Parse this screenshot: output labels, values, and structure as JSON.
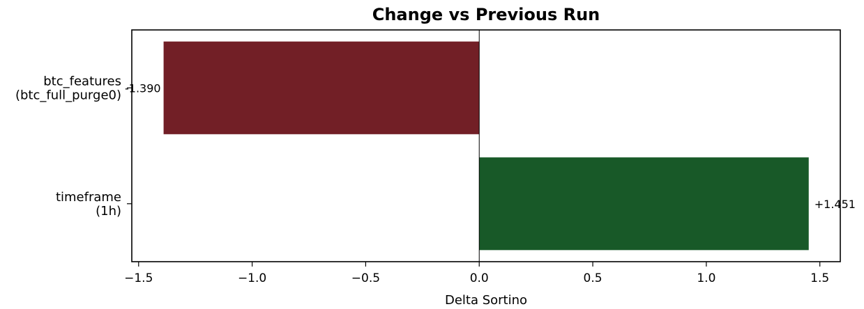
{
  "chart_data": {
    "type": "bar",
    "orientation": "horizontal",
    "title": "Change vs Previous Run",
    "xlabel": "Delta Sortino",
    "ylabel": "",
    "xlim": [
      -1.53,
      1.59
    ],
    "xticks": [
      -1.5,
      -1.0,
      -0.5,
      0.0,
      0.5,
      1.0,
      1.5
    ],
    "xtick_labels": [
      "−1.5",
      "−1.0",
      "−0.5",
      "0.0",
      "0.5",
      "1.0",
      "1.5"
    ],
    "categories": [
      [
        "btc_features",
        "(btc_full_purge0)"
      ],
      [
        "timeframe",
        "(1h)"
      ]
    ],
    "values": [
      -1.39,
      1.451
    ],
    "value_labels": [
      "-1.390",
      "+1.451"
    ],
    "colors": [
      "#721f26",
      "#185928"
    ],
    "zero_line": true,
    "grid": false,
    "legend": "none"
  }
}
